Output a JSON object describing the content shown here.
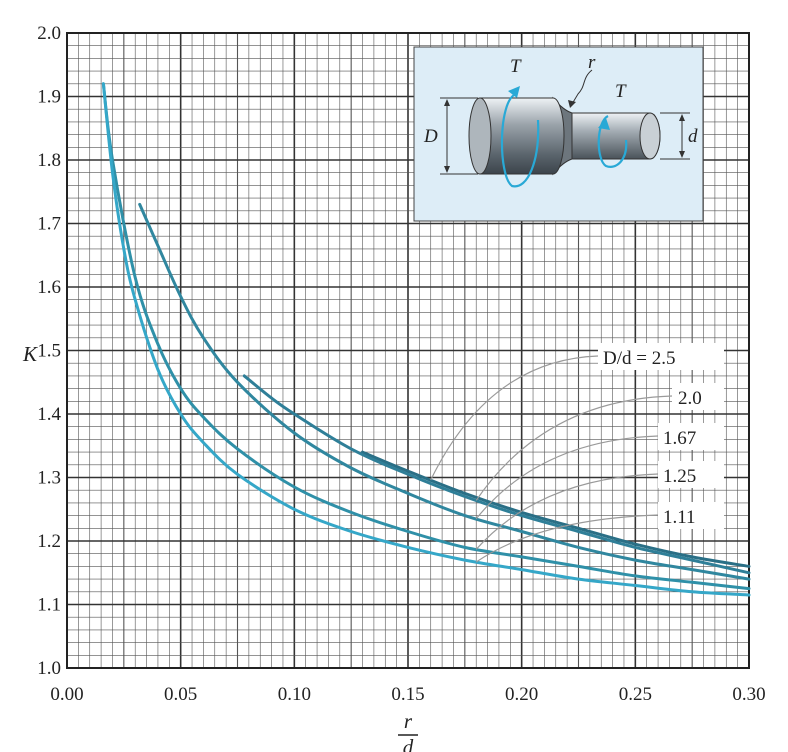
{
  "chart_data": {
    "type": "line",
    "xlabel_top": "r",
    "xlabel_bottom": "d",
    "ylabel": "K",
    "xlim": [
      0.0,
      0.3
    ],
    "ylim": [
      1.0,
      2.0
    ],
    "x_ticks": [
      "0.00",
      "0.05",
      "0.10",
      "0.15",
      "0.20",
      "0.25",
      "0.30"
    ],
    "y_ticks": [
      "1.0",
      "1.1",
      "1.2",
      "1.3",
      "1.4",
      "1.5",
      "1.6",
      "1.7",
      "1.8",
      "1.9",
      "2.0"
    ],
    "grid": true,
    "series": [
      {
        "label": "D/d = 2.5",
        "color": "#2a6f86",
        "x": [
          0.13,
          0.15,
          0.175,
          0.2,
          0.225,
          0.25,
          0.275,
          0.3
        ],
        "y": [
          1.34,
          1.31,
          1.275,
          1.245,
          1.22,
          1.195,
          1.175,
          1.16
        ]
      },
      {
        "label": "2.0",
        "color": "#2f7f98",
        "x": [
          0.078,
          0.09,
          0.1,
          0.125,
          0.15,
          0.175,
          0.2,
          0.225,
          0.25,
          0.275,
          0.3
        ],
        "y": [
          1.46,
          1.425,
          1.4,
          1.345,
          1.305,
          1.27,
          1.24,
          1.215,
          1.19,
          1.17,
          1.15
        ]
      },
      {
        "label": "1.67",
        "color": "#30879f",
        "x": [
          0.032,
          0.04,
          0.05,
          0.06,
          0.075,
          0.1,
          0.125,
          0.15,
          0.175,
          0.2,
          0.225,
          0.25,
          0.275,
          0.3
        ],
        "y": [
          1.73,
          1.665,
          1.585,
          1.52,
          1.45,
          1.37,
          1.315,
          1.275,
          1.24,
          1.215,
          1.19,
          1.17,
          1.155,
          1.14
        ]
      },
      {
        "label": "1.25",
        "color": "#2f90a8",
        "x": [
          0.016,
          0.02,
          0.03,
          0.04,
          0.05,
          0.06,
          0.075,
          0.1,
          0.125,
          0.15,
          0.175,
          0.2,
          0.225,
          0.25,
          0.275,
          0.3
        ],
        "y": [
          1.92,
          1.8,
          1.615,
          1.51,
          1.44,
          1.395,
          1.345,
          1.285,
          1.245,
          1.215,
          1.19,
          1.175,
          1.16,
          1.145,
          1.135,
          1.125
        ]
      },
      {
        "label": "1.11",
        "color": "#35a7c8",
        "x": [
          0.016,
          0.02,
          0.025,
          0.03,
          0.04,
          0.05,
          0.06,
          0.075,
          0.1,
          0.125,
          0.15,
          0.175,
          0.2,
          0.225,
          0.25,
          0.275,
          0.3
        ],
        "y": [
          1.92,
          1.78,
          1.66,
          1.58,
          1.47,
          1.4,
          1.355,
          1.305,
          1.25,
          1.215,
          1.19,
          1.17,
          1.155,
          1.14,
          1.13,
          1.12,
          1.115
        ]
      }
    ],
    "legend_labels": [
      "D/d = 2.5",
      "2.0",
      "1.67",
      "1.25",
      "1.11"
    ],
    "inset_labels": {
      "torque_left": "T",
      "torque_right": "T",
      "radius": "r",
      "large_diameter": "D",
      "small_diameter": "d"
    }
  }
}
